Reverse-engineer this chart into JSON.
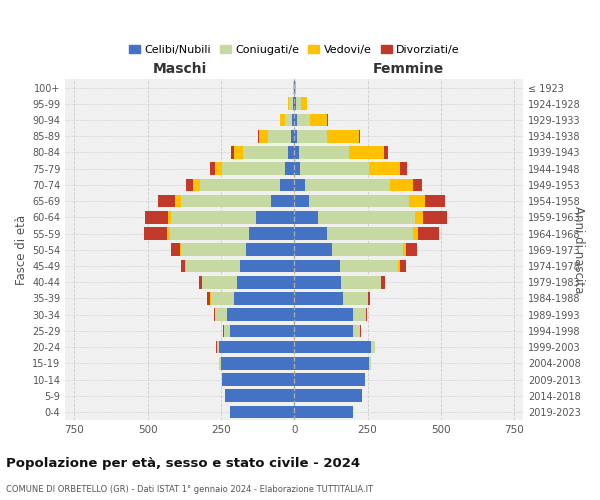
{
  "age_groups": [
    "0-4",
    "5-9",
    "10-14",
    "15-19",
    "20-24",
    "25-29",
    "30-34",
    "35-39",
    "40-44",
    "45-49",
    "50-54",
    "55-59",
    "60-64",
    "65-69",
    "70-74",
    "75-79",
    "80-84",
    "85-89",
    "90-94",
    "95-99",
    "100+"
  ],
  "birth_years": [
    "2019-2023",
    "2014-2018",
    "2009-2013",
    "2004-2008",
    "1999-2003",
    "1994-1998",
    "1989-1993",
    "1984-1988",
    "1979-1983",
    "1974-1978",
    "1969-1973",
    "1964-1968",
    "1959-1963",
    "1954-1958",
    "1949-1953",
    "1944-1948",
    "1939-1943",
    "1934-1938",
    "1929-1933",
    "1924-1928",
    "≤ 1923"
  ],
  "male": {
    "celibi": [
      220,
      235,
      245,
      250,
      255,
      220,
      230,
      205,
      195,
      185,
      165,
      155,
      130,
      80,
      50,
      30,
      20,
      10,
      8,
      5,
      2
    ],
    "coniugati": [
      0,
      0,
      2,
      5,
      10,
      20,
      40,
      80,
      120,
      185,
      220,
      270,
      290,
      305,
      270,
      215,
      155,
      80,
      25,
      12,
      2
    ],
    "vedovi": [
      0,
      0,
      0,
      0,
      0,
      0,
      0,
      1,
      1,
      2,
      5,
      8,
      10,
      20,
      25,
      25,
      30,
      30,
      15,
      5,
      0
    ],
    "divorziati": [
      0,
      0,
      0,
      0,
      2,
      3,
      5,
      10,
      10,
      15,
      30,
      80,
      80,
      60,
      25,
      18,
      10,
      5,
      2,
      0,
      0
    ]
  },
  "female": {
    "nubili": [
      200,
      230,
      240,
      255,
      260,
      200,
      200,
      165,
      160,
      155,
      130,
      110,
      80,
      50,
      35,
      20,
      15,
      10,
      8,
      5,
      2
    ],
    "coniugate": [
      0,
      0,
      2,
      5,
      15,
      25,
      45,
      85,
      135,
      200,
      240,
      295,
      330,
      340,
      290,
      235,
      170,
      100,
      45,
      18,
      2
    ],
    "vedove": [
      0,
      0,
      0,
      0,
      0,
      0,
      0,
      1,
      2,
      5,
      10,
      18,
      30,
      55,
      80,
      105,
      120,
      110,
      60,
      20,
      2
    ],
    "divorziate": [
      0,
      0,
      0,
      0,
      1,
      2,
      3,
      8,
      12,
      20,
      40,
      70,
      80,
      70,
      30,
      25,
      15,
      5,
      2,
      0,
      0
    ]
  },
  "colors": {
    "celibi": "#4472c4",
    "coniugati": "#c5d9a0",
    "vedovi": "#ffc000",
    "divorziati": "#c0392b"
  },
  "title": "Popolazione per età, sesso e stato civile - 2024",
  "subtitle": "COMUNE DI ORBETELLO (GR) - Dati ISTAT 1° gennaio 2024 - Elaborazione TUTTITALIA.IT",
  "ylabel_left": "Fasce di età",
  "ylabel_right": "Anni di nascita",
  "xlabel_left": "Maschi",
  "xlabel_right": "Femmine",
  "xlim": 780,
  "legend_labels": [
    "Celibi/Nubili",
    "Coniugati/e",
    "Vedovi/e",
    "Divorziati/e"
  ],
  "bg_color": "#f0f0f0"
}
